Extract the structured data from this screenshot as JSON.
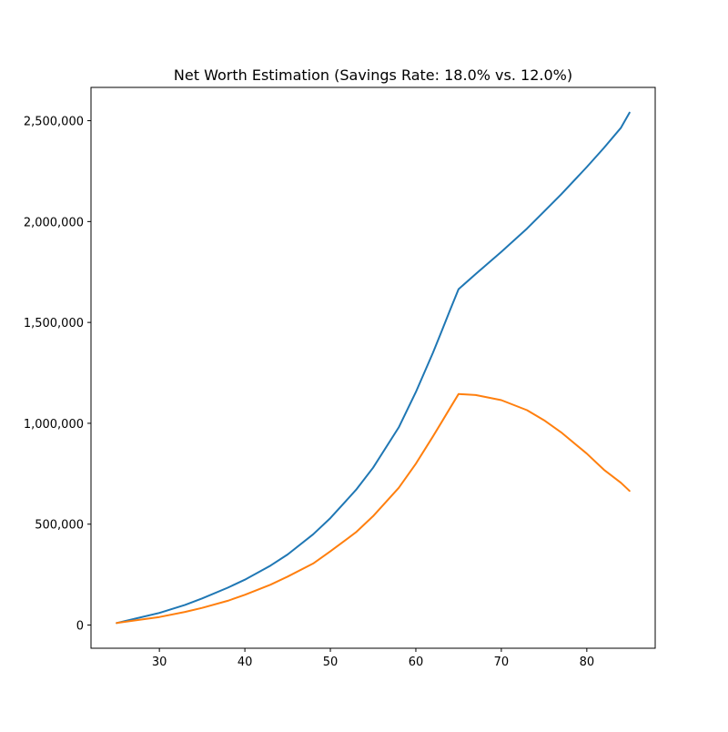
{
  "chart_data": {
    "type": "line",
    "title": "Net Worth Estimation (Savings Rate: 18.0% vs. 12.0%)",
    "xlabel": "",
    "ylabel": "",
    "xlim": [
      22,
      88
    ],
    "ylim": [
      -115000,
      2665000
    ],
    "x_ticks": [
      30,
      40,
      50,
      60,
      70,
      80
    ],
    "y_ticks": [
      0,
      500000,
      1000000,
      1500000,
      2000000,
      2500000
    ],
    "y_tick_labels": [
      "0",
      "500,000",
      "1,000,000",
      "1,500,000",
      "2,000,000",
      "2,500,000"
    ],
    "grid": false,
    "legend": "none",
    "x": [
      25,
      27,
      30,
      33,
      35,
      38,
      40,
      43,
      45,
      48,
      50,
      53,
      55,
      58,
      60,
      62,
      63,
      64,
      65,
      67,
      70,
      73,
      75,
      77,
      80,
      82,
      84,
      85
    ],
    "series": [
      {
        "color": "#1f77b4",
        "values": [
          10000,
          30000,
          60000,
          100000,
          132000,
          185000,
          225000,
          295000,
          350000,
          450000,
          530000,
          670000,
          780000,
          980000,
          1155000,
          1350000,
          1455000,
          1560000,
          1665000,
          1740000,
          1850000,
          1965000,
          2050000,
          2135000,
          2270000,
          2365000,
          2465000,
          2540000
        ]
      },
      {
        "color": "#ff7f0e",
        "values": [
          10000,
          22000,
          40000,
          65000,
          85000,
          120000,
          150000,
          200000,
          240000,
          305000,
          365000,
          460000,
          540000,
          680000,
          800000,
          935000,
          1005000,
          1075000,
          1145000,
          1140000,
          1115000,
          1065000,
          1015000,
          955000,
          850000,
          770000,
          705000,
          665000
        ]
      }
    ]
  }
}
